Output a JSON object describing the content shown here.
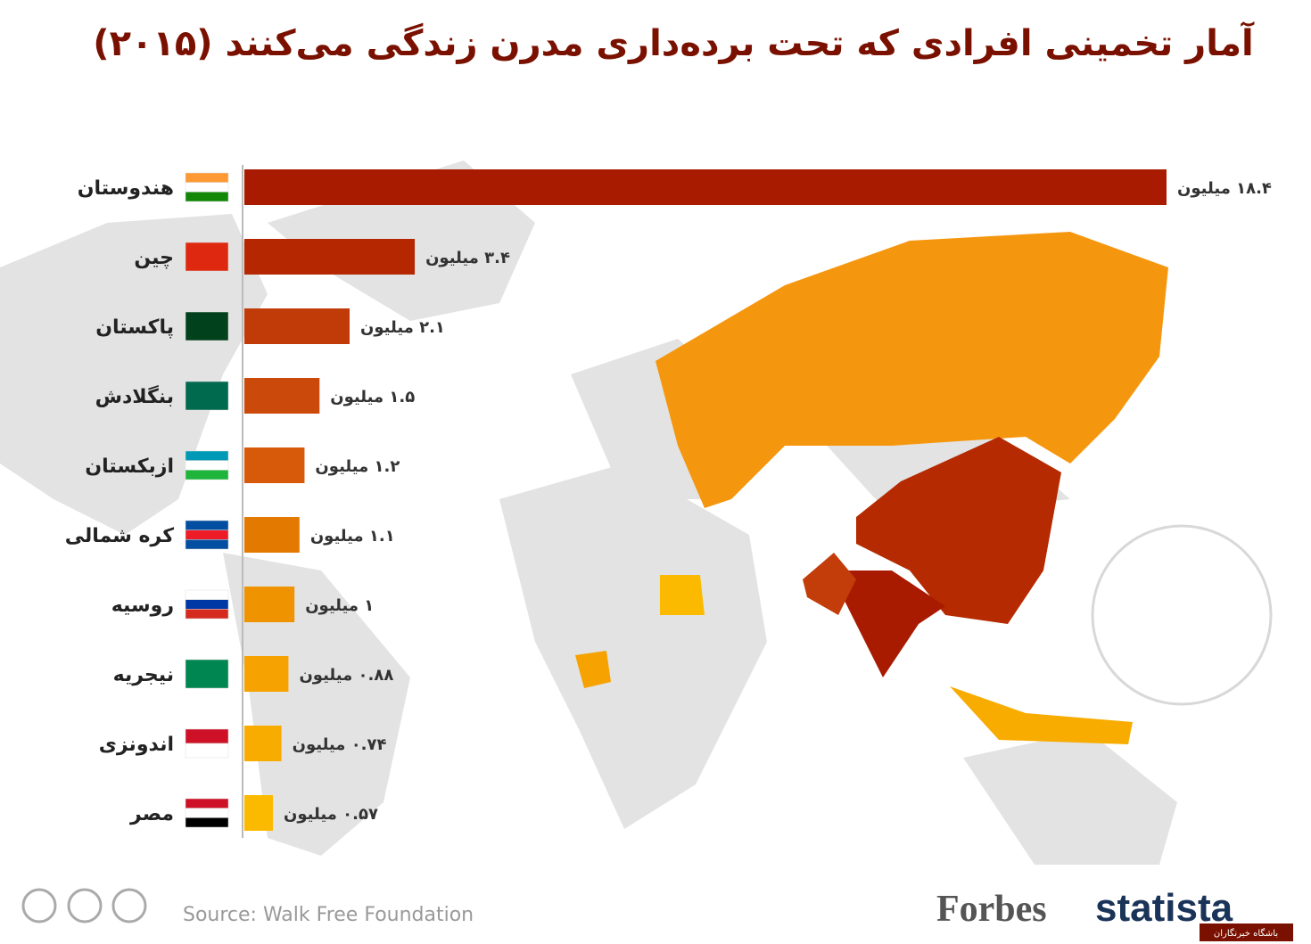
{
  "chart_data": {
    "type": "bar",
    "orientation": "horizontal",
    "title": "آمار تخمینی افرادی که تحت برده‌داری مدرن زندگی می‌کنند (۲۰۱۵)",
    "categories": [
      "هندوستان",
      "چین",
      "پاکستان",
      "بنگلادش",
      "ازبکستان",
      "کره شمالی",
      "روسیه",
      "نیجریه",
      "اندونزی",
      "مصر"
    ],
    "values": [
      18.4,
      3.4,
      2.1,
      1.5,
      1.2,
      1.1,
      1,
      0.88,
      0.74,
      0.57
    ],
    "value_labels": [
      "۱۸.۴ میلیون",
      "۳.۴ میلیون",
      "۲.۱ میلیون",
      "۱.۵ میلیون",
      "۱.۲ میلیون",
      "۱.۱ میلیون",
      "۱ میلیون",
      "۰.۸۸ میلیون",
      "۰.۷۴ میلیون",
      "۰.۵۷ میلیون"
    ],
    "colors": [
      "#a81b00",
      "#b42700",
      "#c13b08",
      "#cb4a0b",
      "#d65a0a",
      "#e47900",
      "#f09300",
      "#f6a200",
      "#f8ac00",
      "#fbb900"
    ],
    "source": "Source: Walk Free Foundation",
    "publisher": "Forbes",
    "brand": "statista",
    "watermark": "باشگاه خبرنگاران"
  }
}
